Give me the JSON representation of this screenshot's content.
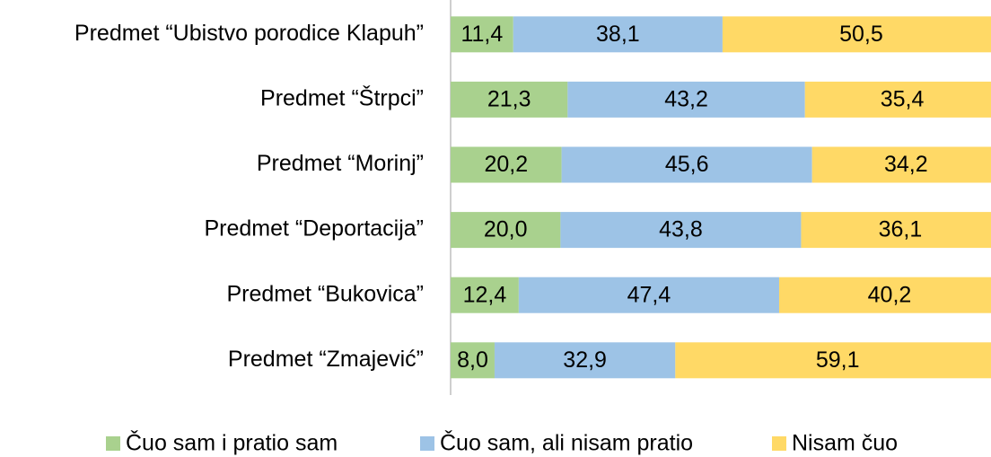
{
  "chart_data": {
    "type": "stacked-barh",
    "categories": [
      "Predmet “Ubistvo porodice Klapuh”",
      "Predmet “Štrpci”",
      "Predmet “Morinj”",
      "Predmet “Deportacija”",
      "Predmet “Bukovica”",
      "Predmet “Zmajević”"
    ],
    "series": [
      {
        "name": "Čuo sam i pratio sam",
        "color": "#a9d18e",
        "values": [
          11.4,
          21.3,
          20.2,
          20.0,
          12.4,
          8.0
        ],
        "value_labels": [
          "11,4",
          "21,3",
          "20,2",
          "20,0",
          "12,4",
          "8,0"
        ]
      },
      {
        "name": "Čuo sam, ali nisam pratio",
        "color": "#9dc3e6",
        "values": [
          38.1,
          43.2,
          45.6,
          43.8,
          47.4,
          32.9
        ],
        "value_labels": [
          "38,1",
          "43,2",
          "45,6",
          "43,8",
          "47,4",
          "32,9"
        ]
      },
      {
        "name": "Nisam čuo",
        "color": "#ffd966",
        "values": [
          50.5,
          35.4,
          34.2,
          36.1,
          40.2,
          59.1
        ],
        "value_labels": [
          "50,5",
          "35,4",
          "34,2",
          "36,1",
          "40,2",
          "59,1"
        ]
      }
    ],
    "xlim": [
      0,
      100
    ],
    "legend": "bottom"
  }
}
